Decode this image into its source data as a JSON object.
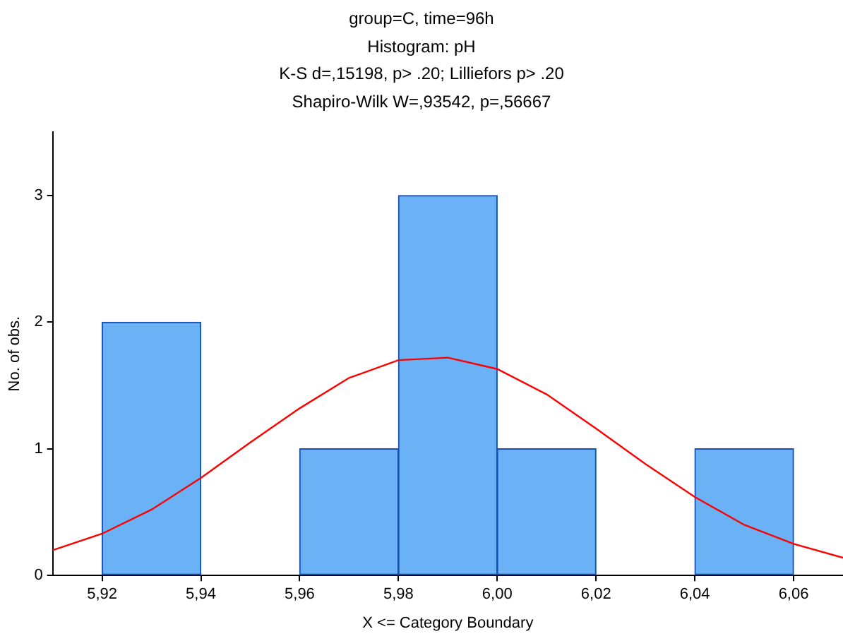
{
  "chart_data": {
    "type": "histogram",
    "title": "group=C, time=96h",
    "subtitle": "Histogram: pH",
    "annotations": [
      "K-S d=,15198, p> .20; Lilliefors p> .20",
      "Shapiro-Wilk W=,93542, p=,56667"
    ],
    "xlabel": "X <= Category Boundary",
    "ylabel": "No. of obs.",
    "bins": [
      5.92,
      5.94,
      5.96,
      5.98,
      6.0,
      6.02,
      6.04,
      6.06
    ],
    "values": [
      2,
      0,
      1,
      3,
      1,
      0,
      1
    ],
    "color": "#6ab2f5",
    "series": [
      {
        "type": "line",
        "color": "#ff0000",
        "x": [
          5.91,
          5.92,
          5.93,
          5.94,
          5.95,
          5.96,
          5.97,
          5.98,
          5.99,
          6.0,
          6.01,
          6.02,
          6.03,
          6.04,
          6.05,
          6.06,
          6.07
        ],
        "values": [
          0.2,
          0.33,
          0.52,
          0.77,
          1.05,
          1.32,
          1.56,
          1.7,
          1.72,
          1.63,
          1.43,
          1.16,
          0.88,
          0.62,
          0.4,
          0.25,
          0.14
        ]
      }
    ],
    "xlim": [
      5.91,
      6.07
    ],
    "xticks": [
      {
        "value": 5.92,
        "label": "5,92"
      },
      {
        "value": 5.94,
        "label": "5,94"
      },
      {
        "value": 5.96,
        "label": "5,96"
      },
      {
        "value": 5.98,
        "label": "5,98"
      },
      {
        "value": 6.0,
        "label": "6,00"
      },
      {
        "value": 6.02,
        "label": "6,02"
      },
      {
        "value": 6.04,
        "label": "6,04"
      },
      {
        "value": 6.06,
        "label": "6,06"
      }
    ],
    "ylim": [
      0,
      3.5
    ],
    "yticks": [
      0,
      1,
      2,
      3
    ],
    "grid": false,
    "legend": false,
    "marker": "none"
  }
}
